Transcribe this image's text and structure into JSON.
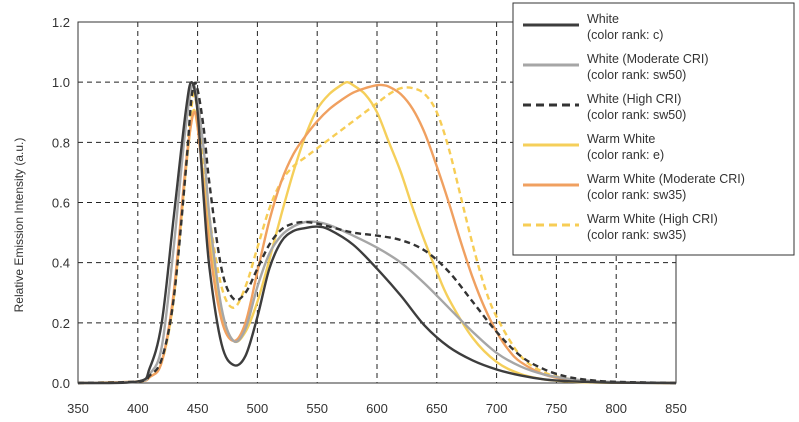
{
  "chart_data": {
    "type": "line",
    "title": "",
    "xlabel": "",
    "ylabel": "Relative Emission Intensity (a.u.)",
    "xlim": [
      350,
      850
    ],
    "ylim": [
      0,
      1.2
    ],
    "x_ticks": [
      "350",
      "400",
      "450",
      "500",
      "550",
      "600",
      "650",
      "700",
      "750",
      "800",
      "850"
    ],
    "y_ticks": [
      "0.0",
      "0.2",
      "0.4",
      "0.6",
      "0.8",
      "1.0",
      "1.2"
    ],
    "grid": true,
    "legend_position": "top-right",
    "series": [
      {
        "name": "White (color rank: c)",
        "legend_line1": "White",
        "legend_line2": "(color rank: c)",
        "color": "#3d3d3d",
        "style": "solid",
        "x": [
          350,
          400,
          410,
          420,
          430,
          440,
          445,
          450,
          455,
          460,
          470,
          480,
          490,
          500,
          510,
          520,
          530,
          540,
          550,
          560,
          580,
          600,
          620,
          640,
          660,
          680,
          700,
          720,
          740,
          760,
          780,
          800,
          850
        ],
        "y": [
          0,
          0.005,
          0.05,
          0.2,
          0.55,
          0.9,
          1.0,
          0.9,
          0.62,
          0.38,
          0.13,
          0.06,
          0.09,
          0.22,
          0.38,
          0.47,
          0.505,
          0.515,
          0.52,
          0.51,
          0.46,
          0.38,
          0.29,
          0.19,
          0.12,
          0.075,
          0.045,
          0.025,
          0.012,
          0.006,
          0.003,
          0.001,
          0
        ]
      },
      {
        "name": "White (Moderate CRI) (color rank: sw50)",
        "legend_line1": "White (Moderate CRI)",
        "legend_line2": "(color rank: sw50)",
        "color": "#a6a6a6",
        "style": "solid",
        "x": [
          350,
          400,
          410,
          420,
          430,
          440,
          447,
          455,
          460,
          470,
          480,
          490,
          500,
          510,
          520,
          530,
          540,
          550,
          560,
          580,
          600,
          620,
          640,
          660,
          680,
          700,
          720,
          740,
          760,
          780,
          800,
          850
        ],
        "y": [
          0,
          0.005,
          0.03,
          0.12,
          0.45,
          0.85,
          0.99,
          0.78,
          0.55,
          0.25,
          0.14,
          0.18,
          0.32,
          0.43,
          0.49,
          0.52,
          0.535,
          0.535,
          0.525,
          0.49,
          0.45,
          0.4,
          0.33,
          0.25,
          0.17,
          0.1,
          0.055,
          0.028,
          0.014,
          0.007,
          0.003,
          0
        ]
      },
      {
        "name": "White (High CRI) (color rank: sw50)",
        "legend_line1": "White (High CRI)",
        "legend_line2": "(color rank: sw50)",
        "color": "#333333",
        "style": "dashed",
        "x": [
          350,
          400,
          410,
          420,
          430,
          440,
          445,
          449,
          455,
          460,
          470,
          480,
          490,
          500,
          510,
          520,
          530,
          540,
          550,
          560,
          580,
          600,
          620,
          640,
          660,
          680,
          700,
          720,
          740,
          760,
          780,
          800,
          850
        ],
        "y": [
          0,
          0.005,
          0.025,
          0.08,
          0.28,
          0.7,
          0.95,
          0.99,
          0.85,
          0.66,
          0.38,
          0.28,
          0.3,
          0.38,
          0.46,
          0.51,
          0.53,
          0.535,
          0.53,
          0.52,
          0.5,
          0.49,
          0.475,
          0.44,
          0.37,
          0.27,
          0.17,
          0.09,
          0.045,
          0.02,
          0.009,
          0.004,
          0
        ]
      },
      {
        "name": "Warm White (color rank: e)",
        "legend_line1": "Warm White",
        "legend_line2": "(color rank: e)",
        "color": "#f5cf5a",
        "style": "solid",
        "x": [
          350,
          400,
          410,
          420,
          430,
          440,
          446,
          450,
          455,
          460,
          470,
          480,
          490,
          500,
          510,
          520,
          530,
          540,
          550,
          560,
          570,
          575,
          580,
          590,
          600,
          610,
          620,
          630,
          640,
          650,
          660,
          680,
          700,
          720,
          740,
          760,
          780,
          800,
          850
        ],
        "y": [
          0,
          0.005,
          0.02,
          0.07,
          0.28,
          0.7,
          0.9,
          0.85,
          0.68,
          0.5,
          0.24,
          0.14,
          0.17,
          0.27,
          0.41,
          0.56,
          0.7,
          0.82,
          0.91,
          0.96,
          0.99,
          1.0,
          0.99,
          0.96,
          0.9,
          0.8,
          0.7,
          0.58,
          0.47,
          0.37,
          0.28,
          0.15,
          0.07,
          0.03,
          0.012,
          0.005,
          0.002,
          0.001,
          0
        ]
      },
      {
        "name": "Warm White (Moderate CRI) (color rank: sw35)",
        "legend_line1": "Warm White (Moderate CRI)",
        "legend_line2": "(color rank: sw35)",
        "color": "#f0a060",
        "style": "solid",
        "x": [
          350,
          400,
          410,
          420,
          430,
          440,
          447,
          452,
          460,
          470,
          480,
          490,
          500,
          510,
          520,
          530,
          540,
          550,
          560,
          570,
          580,
          590,
          600,
          605,
          610,
          620,
          630,
          640,
          650,
          660,
          670,
          680,
          690,
          700,
          710,
          720,
          740,
          760,
          780,
          800,
          850
        ],
        "y": [
          0,
          0.005,
          0.02,
          0.07,
          0.3,
          0.72,
          0.9,
          0.78,
          0.45,
          0.21,
          0.14,
          0.2,
          0.37,
          0.54,
          0.67,
          0.76,
          0.82,
          0.87,
          0.91,
          0.94,
          0.965,
          0.98,
          0.99,
          0.99,
          0.985,
          0.96,
          0.91,
          0.83,
          0.72,
          0.6,
          0.47,
          0.35,
          0.25,
          0.17,
          0.11,
          0.07,
          0.028,
          0.011,
          0.004,
          0.002,
          0
        ]
      },
      {
        "name": "Warm White (High CRI) (color rank: sw35)",
        "legend_line1": "Warm White (High CRI)",
        "legend_line2": "(color rank: sw35)",
        "color": "#f7cd55",
        "style": "dashed",
        "x": [
          350,
          400,
          410,
          420,
          430,
          440,
          445,
          448,
          455,
          460,
          470,
          480,
          490,
          500,
          510,
          520,
          530,
          540,
          550,
          560,
          570,
          580,
          590,
          600,
          610,
          620,
          630,
          640,
          650,
          660,
          670,
          680,
          690,
          700,
          720,
          740,
          760,
          780,
          800,
          850
        ],
        "y": [
          0,
          0.005,
          0.02,
          0.07,
          0.28,
          0.72,
          0.92,
          0.95,
          0.75,
          0.55,
          0.32,
          0.25,
          0.32,
          0.45,
          0.58,
          0.67,
          0.72,
          0.75,
          0.78,
          0.81,
          0.84,
          0.87,
          0.9,
          0.93,
          0.96,
          0.98,
          0.98,
          0.96,
          0.9,
          0.78,
          0.62,
          0.46,
          0.32,
          0.22,
          0.09,
          0.035,
          0.014,
          0.006,
          0.002,
          0
        ]
      }
    ]
  }
}
